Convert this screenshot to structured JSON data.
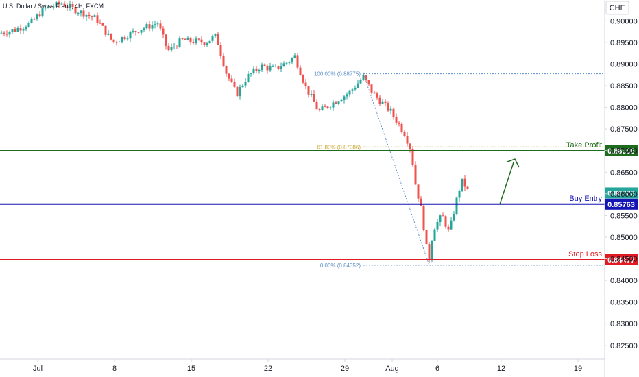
{
  "chart_data": {
    "type": "candlestick",
    "title": "U.S. Dollar / Swiss Franc, 4H, FXCM",
    "currency": "CHF",
    "x_labels": [
      "Jul",
      "8",
      "15",
      "22",
      "29",
      "Aug",
      "6",
      "12",
      "19"
    ],
    "y_ticks": [
      "0.90000",
      "0.89500",
      "0.89000",
      "0.88500",
      "0.88000",
      "0.87500",
      "0.87000",
      "0.86500",
      "0.86000",
      "0.85500",
      "0.85000",
      "0.84500",
      "0.84000",
      "0.83500",
      "0.83000",
      "0.82500"
    ],
    "ylim": [
      0.8218,
      0.9048
    ],
    "current_price": {
      "value": 0.86022,
      "label": "0.86022"
    },
    "levels": [
      {
        "name": "Take Profit",
        "value": 0.86996,
        "label": "0.86996",
        "color": "#1e6b1e"
      },
      {
        "name": "Buy Entry",
        "value": 0.85763,
        "label": "0.85763",
        "color": "#1515b5"
      },
      {
        "name": "Stop Loss",
        "value": 0.84477,
        "label": "0.84477",
        "color": "#e01b24"
      }
    ],
    "fibonacci": [
      {
        "label": "100.00% (0.88775)",
        "value": 0.88775,
        "color": "#5b8fc7"
      },
      {
        "label": "61.80% (0.87086)",
        "value": 0.87086,
        "color": "#c9a227"
      },
      {
        "label": "0.00% (0.84352)",
        "value": 0.84352,
        "color": "#5b8fc7"
      }
    ],
    "colors": {
      "up": "#26a69a",
      "down": "#ef5350",
      "arrow": "#1e6b1e"
    },
    "legend": "none",
    "grid": false,
    "note": "candle path is approximate (trend anchors interpolated)"
  }
}
